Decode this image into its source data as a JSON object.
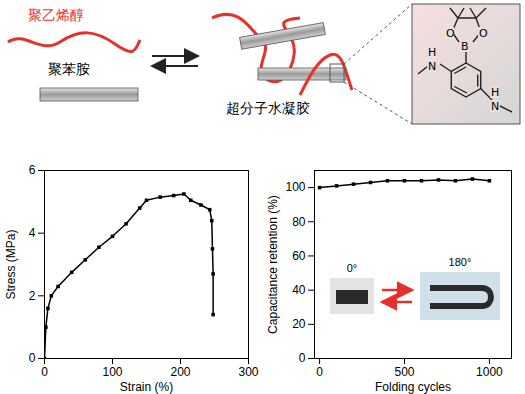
{
  "diagram": {
    "polymer_1": "聚乙烯醇",
    "polymer_2": "聚苯胺",
    "product": "超分子水凝胶",
    "structure_atoms": [
      "O",
      "O",
      "B",
      "H",
      "N",
      "H",
      "N"
    ]
  },
  "chart_data": [
    {
      "type": "line",
      "x_label": "Strain (%)",
      "y_label": "Stress (MPa)",
      "x": [
        0,
        2,
        5,
        10,
        20,
        40,
        60,
        80,
        100,
        120,
        140,
        150,
        170,
        190,
        205,
        215,
        230,
        243,
        246,
        247,
        248,
        248
      ],
      "series": [
        {
          "values": [
            0,
            1.0,
            1.6,
            2.0,
            2.3,
            2.75,
            3.15,
            3.55,
            3.9,
            4.3,
            4.8,
            5.05,
            5.15,
            5.2,
            5.25,
            5.05,
            4.9,
            4.75,
            4.4,
            3.5,
            2.7,
            1.4
          ],
          "color": "#000000",
          "marker": "square"
        }
      ],
      "xlim": [
        0,
        300
      ],
      "xticks": [
        0,
        100,
        200,
        300
      ],
      "ylim": [
        0,
        6
      ],
      "yticks": [
        0,
        2,
        4,
        6
      ]
    },
    {
      "type": "line",
      "x_label": "Folding cycles",
      "y_label": "Capacitance retention (%)",
      "x": [
        0,
        100,
        200,
        300,
        400,
        500,
        600,
        700,
        800,
        900,
        1000
      ],
      "series": [
        {
          "values": [
            100,
            101,
            102,
            103,
            104,
            104,
            104,
            104.5,
            104,
            105,
            104
          ],
          "color": "#000000",
          "marker": "square"
        }
      ],
      "xlim": [
        -30,
        1130
      ],
      "xticks": [
        0,
        500,
        1000
      ],
      "ylim": [
        0,
        110
      ],
      "yticks": [
        0,
        20,
        40,
        60,
        80,
        100
      ],
      "inset_labels": [
        "0°",
        "180°"
      ]
    }
  ]
}
